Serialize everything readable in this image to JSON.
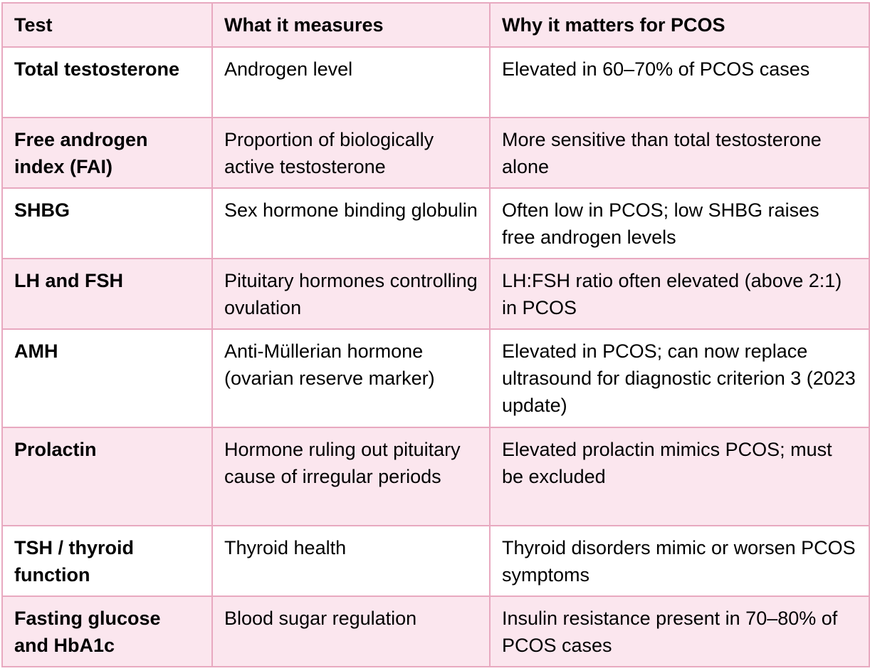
{
  "table": {
    "headers": [
      "Test",
      "What it measures",
      "Why it matters for PCOS"
    ],
    "rows": [
      {
        "test": "Total testosterone",
        "measures": "Androgen level",
        "why": "Elevated in 60–70% of PCOS cases"
      },
      {
        "test": "Free androgen index (FAI)",
        "measures": "Proportion of biologically active testosterone",
        "why": "More sensitive than total testosterone alone"
      },
      {
        "test": "SHBG",
        "measures": "Sex hormone binding globulin",
        "why": "Often low in PCOS; low SHBG raises free androgen levels"
      },
      {
        "test": "LH and FSH",
        "measures": "Pituitary hormones controlling ovulation",
        "why": "LH:FSH ratio often elevated (above 2:1) in PCOS"
      },
      {
        "test": "AMH",
        "measures": "Anti-Müllerian hormone (ovarian reserve marker)",
        "why": "Elevated in PCOS; can now replace ultrasound for diagnostic criterion 3 (2023 update)"
      },
      {
        "test": "Prolactin",
        "measures": "Hormone ruling out pituitary cause of irregular periods",
        "why": "Elevated prolactin mimics PCOS; must be excluded"
      },
      {
        "test": "TSH / thyroid function",
        "measures": "Thyroid health",
        "why": "Thyroid disorders mimic or worsen PCOS symptoms"
      },
      {
        "test": "Fasting glucose and HbA1c",
        "measures": "Blood sugar regulation",
        "why": "Insulin resistance present in 70–80% of PCOS cases"
      }
    ]
  }
}
